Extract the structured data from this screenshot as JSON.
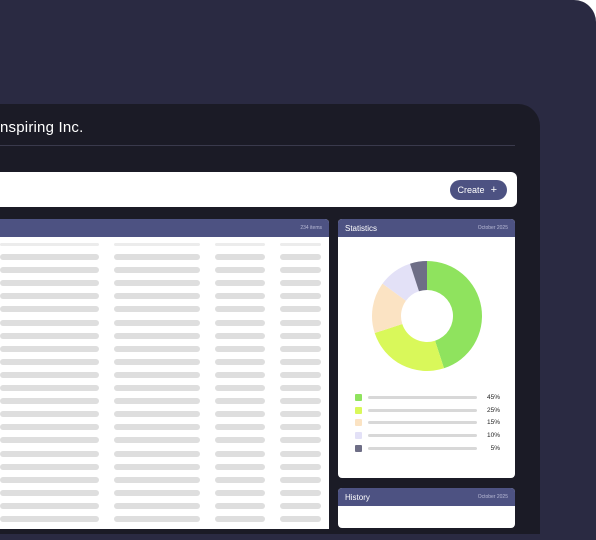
{
  "header": {
    "company_title": "nspiring Inc."
  },
  "toolbar": {
    "create_label": "Create",
    "create_icon": "plus-icon"
  },
  "table_panel": {
    "count_label": "234 items"
  },
  "stats": {
    "title": "Statistics",
    "date": "October 2025",
    "chart_data": {
      "type": "pie",
      "style": "donut",
      "slices": [
        {
          "value": 45,
          "label": "45%",
          "color": "#8fe35e"
        },
        {
          "value": 25,
          "label": "25%",
          "color": "#d9f85a"
        },
        {
          "value": 15,
          "label": "15%",
          "color": "#fbe3c3"
        },
        {
          "value": 10,
          "label": "10%",
          "color": "#e3e1f7"
        },
        {
          "value": 5,
          "label": "5%",
          "color": "#6e6e86"
        }
      ]
    }
  },
  "history": {
    "title": "History",
    "date": "October 2025"
  },
  "colors": {
    "frame": "#2a2a42",
    "screen": "#1b1b26",
    "accent": "#4d5282"
  }
}
